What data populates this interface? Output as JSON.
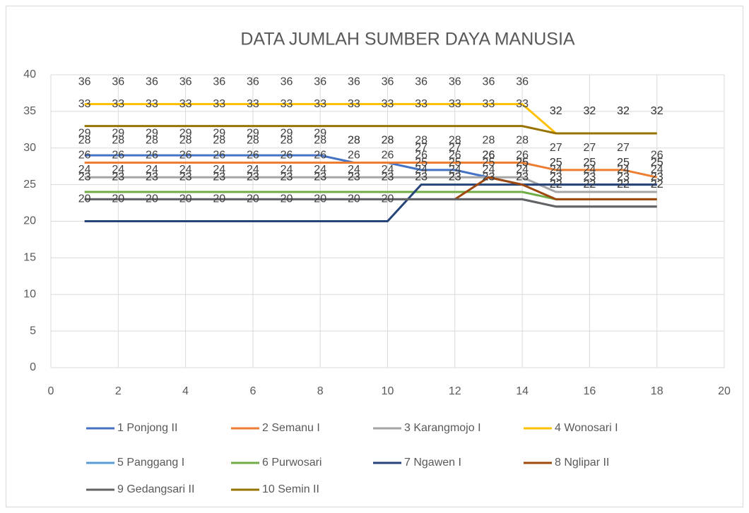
{
  "chart_data": {
    "type": "line",
    "title": "DATA JUMLAH SUMBER DAYA MANUSIA",
    "x": [
      1,
      2,
      3,
      4,
      5,
      6,
      7,
      8,
      9,
      10,
      11,
      12,
      13,
      14,
      15,
      16,
      17,
      18
    ],
    "xlim": [
      0,
      20
    ],
    "xticks": [
      0,
      2,
      4,
      6,
      8,
      10,
      12,
      14,
      16,
      18,
      20
    ],
    "ylim": [
      0,
      40
    ],
    "yticks": [
      0,
      5,
      10,
      15,
      20,
      25,
      30,
      35,
      40
    ],
    "grid": true,
    "legend": "bottom",
    "series": [
      {
        "name": "1 Ponjong II",
        "color": "#4472c4",
        "values": [
          29,
          29,
          29,
          29,
          29,
          29,
          29,
          29,
          28,
          28,
          27,
          27,
          26,
          25,
          25,
          25,
          25,
          25
        ]
      },
      {
        "name": "2 Semanu I",
        "color": "#ed7d31",
        "values": [
          28,
          28,
          28,
          28,
          28,
          28,
          28,
          28,
          28,
          28,
          28,
          28,
          28,
          28,
          27,
          27,
          27,
          26
        ]
      },
      {
        "name": "3 Karangmojo I",
        "color": "#a5a5a5",
        "values": [
          26,
          26,
          26,
          26,
          26,
          26,
          26,
          26,
          26,
          26,
          26,
          26,
          26,
          26,
          24,
          24,
          24,
          24
        ]
      },
      {
        "name": "4 Wonosari I",
        "color": "#ffc000",
        "values": [
          36,
          36,
          36,
          36,
          36,
          36,
          36,
          36,
          36,
          36,
          36,
          36,
          36,
          36,
          32,
          32,
          32,
          32
        ]
      },
      {
        "name": "5 Panggang I",
        "color": "#5b9bd5",
        "values": [
          23,
          23,
          23,
          23,
          23,
          23,
          23,
          23,
          23,
          23,
          23,
          23,
          23,
          23,
          22,
          22,
          22,
          22
        ]
      },
      {
        "name": "6 Purwosari",
        "color": "#70ad47",
        "values": [
          24,
          24,
          24,
          24,
          24,
          24,
          24,
          24,
          24,
          24,
          24,
          24,
          24,
          24,
          23,
          23,
          23,
          23
        ]
      },
      {
        "name": "7 Ngawen I",
        "color": "#264478",
        "values": [
          20,
          20,
          20,
          20,
          20,
          20,
          20,
          20,
          20,
          20,
          25,
          25,
          25,
          25,
          25,
          25,
          25,
          25
        ]
      },
      {
        "name": "8 Nglipar II",
        "color": "#9e480e",
        "values": [
          null,
          null,
          null,
          null,
          null,
          null,
          null,
          null,
          null,
          null,
          null,
          23,
          26,
          25,
          23,
          23,
          23,
          23
        ]
      },
      {
        "name": "9 Gedangsari II",
        "color": "#636363",
        "values": [
          23,
          23,
          23,
          23,
          23,
          23,
          23,
          23,
          23,
          23,
          23,
          23,
          23,
          23,
          22,
          22,
          22,
          22
        ]
      },
      {
        "name": "10 Semin II",
        "color": "#997300",
        "values": [
          33,
          33,
          33,
          33,
          33,
          33,
          33,
          33,
          33,
          33,
          33,
          33,
          33,
          33,
          32,
          32,
          32,
          32
        ]
      }
    ]
  }
}
